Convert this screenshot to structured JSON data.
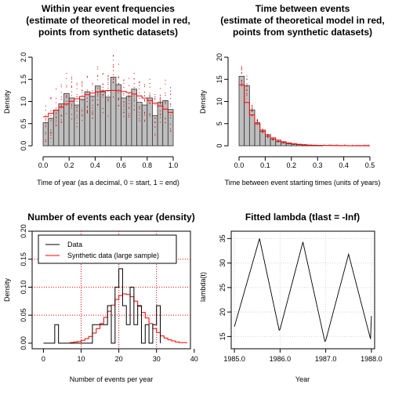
{
  "chart_data": [
    {
      "type": "histogram",
      "title_lines": [
        "Within year event frequencies",
        "(estimate of theoretical model in red,",
        "points from synthetic datasets)"
      ],
      "xlabel": "Time of year (as a decimal, 0 = start, 1 = end)",
      "ylabel": "Density",
      "xlim": [
        0,
        1
      ],
      "ylim": [
        0,
        2
      ],
      "xticks": [
        "0.0",
        "0.2",
        "0.4",
        "0.6",
        "0.8",
        "1.0"
      ],
      "yticks": [
        "0.0",
        "0.5",
        "1.0",
        "1.5",
        "2.0"
      ],
      "bin_width": 0.04,
      "bin_start": 0.0,
      "densities": [
        0.52,
        0.62,
        0.8,
        0.95,
        1.18,
        1.08,
        0.92,
        1.05,
        1.22,
        1.12,
        1.35,
        1.22,
        1.1,
        1.55,
        1.38,
        1.08,
        1.12,
        1.28,
        0.98,
        0.92,
        1.08,
        0.68,
        0.98,
        1.02,
        0.82
      ],
      "model_curve_x": [
        0.0,
        0.1,
        0.2,
        0.3,
        0.4,
        0.5,
        0.55,
        0.6,
        0.7,
        0.8,
        0.9,
        1.0
      ],
      "model_curve_y": [
        0.62,
        0.75,
        0.92,
        1.05,
        1.15,
        1.22,
        1.25,
        1.22,
        1.12,
        1.02,
        0.88,
        0.75
      ],
      "colors": {
        "bars": "#bebebe",
        "model": "#ff0000",
        "points": "#cc0000"
      }
    },
    {
      "type": "histogram",
      "title_lines": [
        "Time between events",
        "(estimate of theoretical model in red,",
        "points from synthetic datasets)"
      ],
      "xlabel": "Time between event starting times (units of years)",
      "ylabel": "Density",
      "xlim": [
        0,
        0.5
      ],
      "ylim": [
        0,
        20
      ],
      "xticks": [
        "0.0",
        "0.1",
        "0.2",
        "0.3",
        "0.4",
        "0.5"
      ],
      "yticks": [
        "0",
        "5",
        "10",
        "15",
        "20"
      ],
      "bin_width": 0.02,
      "bin_start": 0.0,
      "densities": [
        15.7,
        13.6,
        8.1,
        5.2,
        3.3,
        2.2,
        1.5,
        1.0,
        0.7,
        0.5,
        0.35,
        0.25,
        0.18,
        0.12,
        0.1,
        0.06
      ],
      "colors": {
        "bars": "#bebebe",
        "model": "#ff0000",
        "points": "#cc0000"
      }
    },
    {
      "type": "line",
      "title_lines": [
        "Number of events each year (density)"
      ],
      "xlabel": "Number of events per year",
      "ylabel": "Density",
      "xlim": [
        -3,
        39
      ],
      "ylim": [
        -0.01,
        0.2
      ],
      "xticks": [
        "0",
        "10",
        "20",
        "30",
        "40"
      ],
      "yticks": [
        "0.00",
        "0.05",
        "0.10",
        "0.15",
        "0.20"
      ],
      "legend": {
        "position": "top",
        "entries": [
          "Data",
          "Synthetic data (large sample)"
        ]
      },
      "series": [
        {
          "name": "Data",
          "x": [
            0,
            3,
            4,
            13,
            17,
            18,
            19,
            20,
            21,
            22,
            23,
            24,
            25,
            26,
            27,
            28,
            29,
            30,
            31
          ],
          "values": [
            0,
            0.033,
            0,
            0.033,
            0.067,
            0,
            0.1,
            0.133,
            0.067,
            0.033,
            0.1,
            0.033,
            0.067,
            0,
            0.033,
            0,
            0.033,
            0.067,
            0
          ]
        },
        {
          "name": "Synthetic data (large sample)",
          "x": [
            7,
            8,
            9,
            10,
            11,
            12,
            13,
            14,
            15,
            16,
            17,
            18,
            19,
            20,
            21,
            22,
            23,
            24,
            25,
            26,
            27,
            28,
            29,
            30,
            31,
            32,
            33,
            34,
            35,
            36,
            37,
            38
          ],
          "values": [
            0.001,
            0.002,
            0.003,
            0.005,
            0.008,
            0.012,
            0.018,
            0.026,
            0.035,
            0.046,
            0.057,
            0.068,
            0.078,
            0.085,
            0.088,
            0.087,
            0.083,
            0.075,
            0.066,
            0.055,
            0.045,
            0.035,
            0.026,
            0.019,
            0.013,
            0.009,
            0.006,
            0.004,
            0.002,
            0.001,
            0.001,
            0
          ]
        }
      ],
      "ref_lines": {
        "vertical": [
          10,
          20,
          30
        ],
        "horizontal": [
          0.05,
          0.1,
          0.15
        ]
      },
      "colors": {
        "data": "#000000",
        "synthetic": "#ff0000",
        "grid": "#ff0000"
      }
    },
    {
      "type": "line",
      "title_lines": [
        "Fitted lambda (tlast = -Inf)"
      ],
      "xlabel": "Year",
      "ylabel": "lambda(t)",
      "xlim": [
        1984.93,
        1988.07
      ],
      "ylim": [
        12.5,
        36.5
      ],
      "xticks": [
        "1985.0",
        "1986.0",
        "1987.0",
        "1988.0"
      ],
      "xtick_values": [
        1985,
        1986,
        1987,
        1988
      ],
      "yticks": [
        "15",
        "20",
        "25",
        "30",
        "35"
      ],
      "ytick_values": [
        15,
        20,
        25,
        30,
        35
      ],
      "grid": true,
      "x": [
        1985.0,
        1985.55,
        1985.98,
        1986.0,
        1986.5,
        1986.98,
        1987.0,
        1987.5,
        1987.98,
        1988.0
      ],
      "values": [
        17.0,
        35.0,
        16.3,
        16.5,
        34.3,
        14.0,
        14.2,
        31.8,
        14.5,
        19.2
      ],
      "colors": {
        "line": "#000000",
        "grid": "#d3d3d3"
      }
    }
  ]
}
